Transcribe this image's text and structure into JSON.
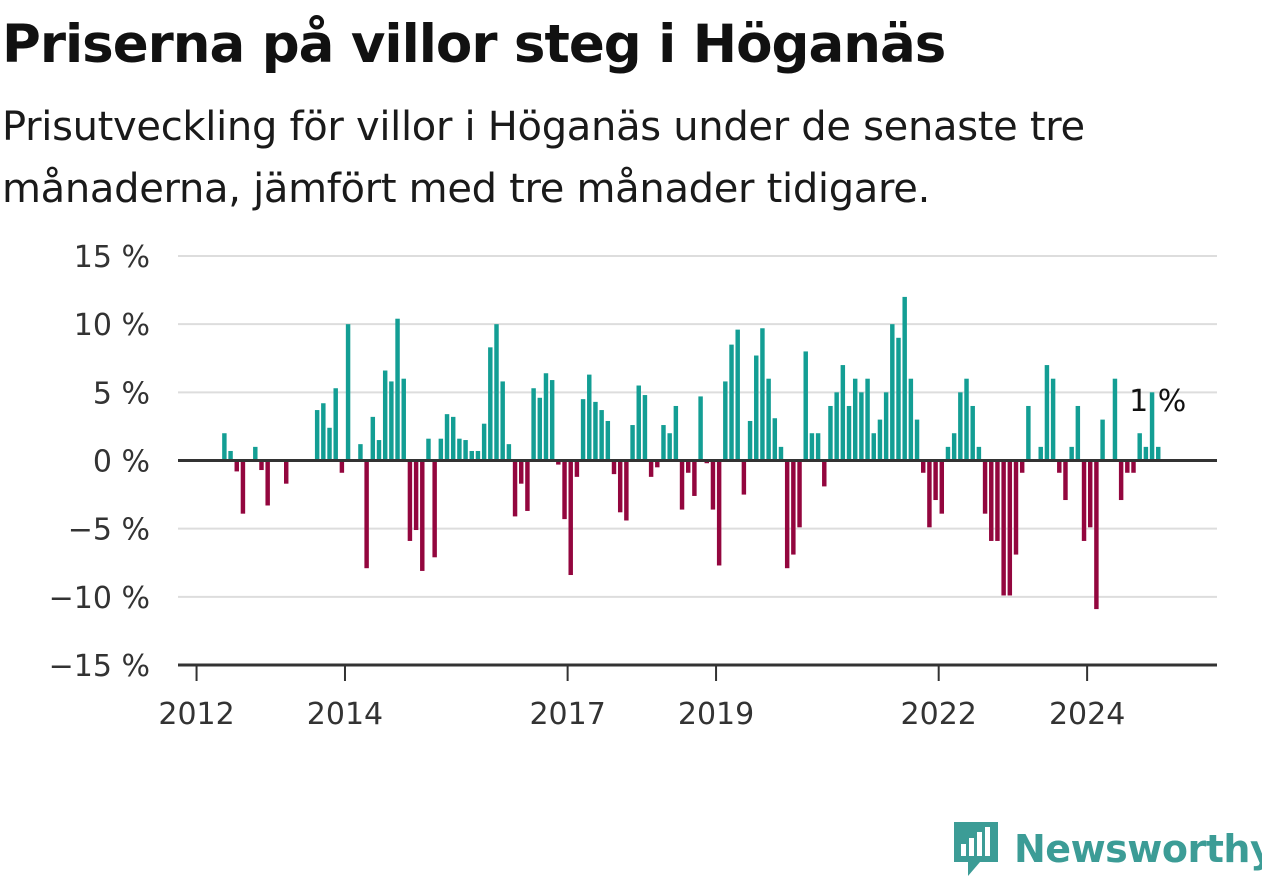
{
  "title": "Priserna på villor steg i Höganäs",
  "subtitle": "Prisutveckling för villor i Höganäs under de senaste tre månaderna, jämfört med tre månader tidigare.",
  "brand": {
    "name": "Newsworthy",
    "icon": "newsworthy-logo-icon"
  },
  "colors": {
    "positive": "#139e94",
    "negative": "#93063e",
    "grid": "#dddddd",
    "axis": "#333333",
    "brand": "#3c9c96"
  },
  "chart_data": {
    "type": "bar",
    "title": "Priserna på villor steg i Höganäs",
    "xlabel": "",
    "ylabel": "",
    "ylim": [
      -15,
      15
    ],
    "grid": true,
    "y_ticks": [
      15,
      10,
      5,
      0,
      -5,
      -10,
      -15
    ],
    "y_tick_labels": [
      "15 %",
      "10 %",
      "5 %",
      "0 %",
      "−5 %",
      "−10 %",
      "−15 %"
    ],
    "x_ticks": [
      {
        "label": "2012",
        "date": "2012-01"
      },
      {
        "label": "2014",
        "date": "2014-01"
      },
      {
        "label": "2017",
        "date": "2017-01"
      },
      {
        "label": "2019",
        "date": "2019-01"
      },
      {
        "label": "2022",
        "date": "2022-01"
      },
      {
        "label": "2024",
        "date": "2024-01"
      }
    ],
    "x_range": [
      "2011-10",
      "2025-10"
    ],
    "annotation": {
      "text": "1 %",
      "date": "2024-09",
      "value": 1
    },
    "series": [
      {
        "points": [
          {
            "x": "2012-05",
            "y": 2
          },
          {
            "x": "2012-06",
            "y": 0.7
          },
          {
            "x": "2012-07",
            "y": -0.8
          },
          {
            "x": "2012-08",
            "y": -3.9
          },
          {
            "x": "2012-10",
            "y": 1
          },
          {
            "x": "2012-11",
            "y": -0.7
          },
          {
            "x": "2012-12",
            "y": -3.3
          },
          {
            "x": "2013-03",
            "y": -1.7
          },
          {
            "x": "2013-08",
            "y": 3.7
          },
          {
            "x": "2013-09",
            "y": 4.2
          },
          {
            "x": "2013-10",
            "y": 2.4
          },
          {
            "x": "2013-11",
            "y": 5.3
          },
          {
            "x": "2013-12",
            "y": -0.9
          },
          {
            "x": "2014-01",
            "y": 10
          },
          {
            "x": "2014-03",
            "y": 1.2
          },
          {
            "x": "2014-04",
            "y": -7.9
          },
          {
            "x": "2014-05",
            "y": 3.2
          },
          {
            "x": "2014-06",
            "y": 1.5
          },
          {
            "x": "2014-07",
            "y": 6.6
          },
          {
            "x": "2014-08",
            "y": 5.8
          },
          {
            "x": "2014-09",
            "y": 10.4
          },
          {
            "x": "2014-10",
            "y": 6
          },
          {
            "x": "2014-11",
            "y": -5.9
          },
          {
            "x": "2014-12",
            "y": -5.1
          },
          {
            "x": "2015-01",
            "y": -8.1
          },
          {
            "x": "2015-02",
            "y": 1.6
          },
          {
            "x": "2015-03",
            "y": -7.1
          },
          {
            "x": "2015-04",
            "y": 1.6
          },
          {
            "x": "2015-05",
            "y": 3.4
          },
          {
            "x": "2015-06",
            "y": 3.2
          },
          {
            "x": "2015-07",
            "y": 1.6
          },
          {
            "x": "2015-08",
            "y": 1.5
          },
          {
            "x": "2015-09",
            "y": 0.7
          },
          {
            "x": "2015-10",
            "y": 0.7
          },
          {
            "x": "2015-11",
            "y": 2.7
          },
          {
            "x": "2015-12",
            "y": 8.3
          },
          {
            "x": "2016-01",
            "y": 10
          },
          {
            "x": "2016-02",
            "y": 5.8
          },
          {
            "x": "2016-03",
            "y": 1.2
          },
          {
            "x": "2016-04",
            "y": -4.1
          },
          {
            "x": "2016-05",
            "y": -1.7
          },
          {
            "x": "2016-06",
            "y": -3.7
          },
          {
            "x": "2016-07",
            "y": 5.3
          },
          {
            "x": "2016-08",
            "y": 4.6
          },
          {
            "x": "2016-09",
            "y": 6.4
          },
          {
            "x": "2016-10",
            "y": 5.9
          },
          {
            "x": "2016-11",
            "y": -0.3
          },
          {
            "x": "2016-12",
            "y": -4.3
          },
          {
            "x": "2017-01",
            "y": -8.4
          },
          {
            "x": "2017-02",
            "y": -1.2
          },
          {
            "x": "2017-03",
            "y": 4.5
          },
          {
            "x": "2017-04",
            "y": 6.3
          },
          {
            "x": "2017-05",
            "y": 4.3
          },
          {
            "x": "2017-06",
            "y": 3.7
          },
          {
            "x": "2017-07",
            "y": 2.9
          },
          {
            "x": "2017-08",
            "y": -1
          },
          {
            "x": "2017-09",
            "y": -3.8
          },
          {
            "x": "2017-10",
            "y": -4.4
          },
          {
            "x": "2017-11",
            "y": 2.6
          },
          {
            "x": "2017-12",
            "y": 5.5
          },
          {
            "x": "2018-01",
            "y": 4.8
          },
          {
            "x": "2018-02",
            "y": -1.2
          },
          {
            "x": "2018-03",
            "y": -0.5
          },
          {
            "x": "2018-04",
            "y": 2.6
          },
          {
            "x": "2018-05",
            "y": 2
          },
          {
            "x": "2018-06",
            "y": 4
          },
          {
            "x": "2018-07",
            "y": -3.6
          },
          {
            "x": "2018-08",
            "y": -0.9
          },
          {
            "x": "2018-09",
            "y": -2.6
          },
          {
            "x": "2018-10",
            "y": 4.7
          },
          {
            "x": "2018-11",
            "y": -0.2
          },
          {
            "x": "2018-12",
            "y": -3.6
          },
          {
            "x": "2019-01",
            "y": -7.7
          },
          {
            "x": "2019-02",
            "y": 5.8
          },
          {
            "x": "2019-03",
            "y": 8.5
          },
          {
            "x": "2019-04",
            "y": 9.6
          },
          {
            "x": "2019-05",
            "y": -2.5
          },
          {
            "x": "2019-06",
            "y": 2.9
          },
          {
            "x": "2019-07",
            "y": 7.7
          },
          {
            "x": "2019-08",
            "y": 9.7
          },
          {
            "x": "2019-09",
            "y": 6
          },
          {
            "x": "2019-10",
            "y": 3.1
          },
          {
            "x": "2019-11",
            "y": 1
          },
          {
            "x": "2019-12",
            "y": -7.9
          },
          {
            "x": "2020-01",
            "y": -6.9
          },
          {
            "x": "2020-02",
            "y": -4.9
          },
          {
            "x": "2020-03",
            "y": 8
          },
          {
            "x": "2020-04",
            "y": 2
          },
          {
            "x": "2020-05",
            "y": 2
          },
          {
            "x": "2020-06",
            "y": -1.9
          },
          {
            "x": "2020-07",
            "y": 4
          },
          {
            "x": "2020-08",
            "y": 5
          },
          {
            "x": "2020-09",
            "y": 7
          },
          {
            "x": "2020-10",
            "y": 4
          },
          {
            "x": "2020-11",
            "y": 6
          },
          {
            "x": "2020-12",
            "y": 5
          },
          {
            "x": "2021-01",
            "y": 6
          },
          {
            "x": "2021-02",
            "y": 2
          },
          {
            "x": "2021-03",
            "y": 3
          },
          {
            "x": "2021-04",
            "y": 5
          },
          {
            "x": "2021-05",
            "y": 10
          },
          {
            "x": "2021-06",
            "y": 9
          },
          {
            "x": "2021-07",
            "y": 12
          },
          {
            "x": "2021-08",
            "y": 6
          },
          {
            "x": "2021-09",
            "y": 3
          },
          {
            "x": "2021-10",
            "y": -0.9
          },
          {
            "x": "2021-11",
            "y": -4.9
          },
          {
            "x": "2021-12",
            "y": -2.9
          },
          {
            "x": "2022-01",
            "y": -3.9
          },
          {
            "x": "2022-02",
            "y": 1
          },
          {
            "x": "2022-03",
            "y": 2
          },
          {
            "x": "2022-04",
            "y": 5
          },
          {
            "x": "2022-05",
            "y": 6
          },
          {
            "x": "2022-06",
            "y": 4
          },
          {
            "x": "2022-07",
            "y": 1
          },
          {
            "x": "2022-08",
            "y": -3.9
          },
          {
            "x": "2022-09",
            "y": -5.9
          },
          {
            "x": "2022-10",
            "y": -5.9
          },
          {
            "x": "2022-11",
            "y": -9.9
          },
          {
            "x": "2022-12",
            "y": -9.9
          },
          {
            "x": "2023-01",
            "y": -6.9
          },
          {
            "x": "2023-02",
            "y": -0.9
          },
          {
            "x": "2023-03",
            "y": 4
          },
          {
            "x": "2023-05",
            "y": 1
          },
          {
            "x": "2023-06",
            "y": 7
          },
          {
            "x": "2023-07",
            "y": 6
          },
          {
            "x": "2023-08",
            "y": -0.9
          },
          {
            "x": "2023-09",
            "y": -2.9
          },
          {
            "x": "2023-10",
            "y": 1
          },
          {
            "x": "2023-11",
            "y": 4
          },
          {
            "x": "2023-12",
            "y": -5.9
          },
          {
            "x": "2024-01",
            "y": -4.9
          },
          {
            "x": "2024-02",
            "y": -10.9
          },
          {
            "x": "2024-03",
            "y": 3
          },
          {
            "x": "2024-05",
            "y": 6
          },
          {
            "x": "2024-06",
            "y": -2.9
          },
          {
            "x": "2024-07",
            "y": -0.9
          },
          {
            "x": "2024-08",
            "y": -0.9
          },
          {
            "x": "2024-09",
            "y": 2
          },
          {
            "x": "2024-10",
            "y": 1
          },
          {
            "x": "2024-11",
            "y": 5
          },
          {
            "x": "2024-12",
            "y": 1
          }
        ]
      }
    ]
  }
}
